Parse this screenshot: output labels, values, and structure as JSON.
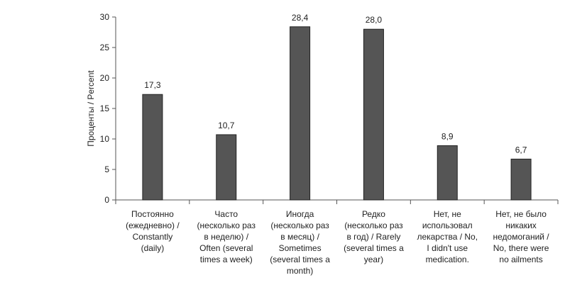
{
  "chart_data": {
    "type": "bar",
    "ylabel": "Проценты / Percent",
    "ylim": [
      0,
      30
    ],
    "yticks": [
      0,
      5,
      10,
      15,
      20,
      25,
      30
    ],
    "grid": false,
    "legend": "none",
    "bar_color": "#555555",
    "categories": [
      [
        "Постоянно",
        "(ежедневно) /",
        "Constantly",
        "(daily)"
      ],
      [
        "Часто",
        "(несколько раз",
        "в неделю) /",
        "Often (several",
        "times a week)"
      ],
      [
        "Иногда",
        "(несколько раз",
        "в месяц) /",
        "Sometimes",
        "(several times a",
        "month)"
      ],
      [
        "Редко",
        "(несколько раз",
        "в год) / Rarely",
        "(several times a",
        "year)"
      ],
      [
        "Нет, не",
        "использовал",
        "лекарства / No,",
        "I didn't use",
        "medication."
      ],
      [
        "Нет, не было",
        "никаких",
        "недомоганий /",
        "No, there were",
        "no ailments"
      ]
    ],
    "values": [
      17.3,
      10.7,
      28.4,
      28.0,
      8.9,
      6.7
    ],
    "data_labels": [
      "17,3",
      "10,7",
      "28,4",
      "28,0",
      "8,9",
      "6,7"
    ]
  }
}
